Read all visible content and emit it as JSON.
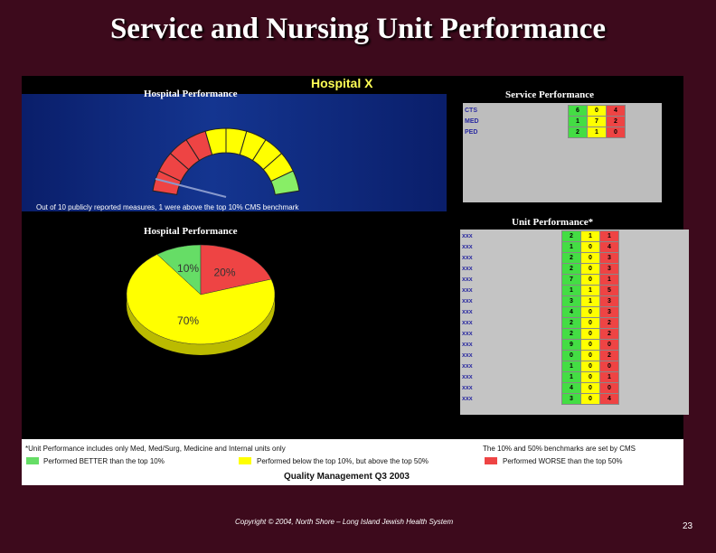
{
  "slide": {
    "title": "Service and Nursing Unit Performance",
    "copyright": "Copyright © 2004, North Shore – Long Island Jewish Health System",
    "page": "23"
  },
  "panel": {
    "hospital": "Hospital X",
    "hp_title": "Hospital Performance",
    "gauge_note": "Out of 10 publicly reported measures, 1 were above the top 10% CMS benchmark",
    "sp_title": "Service Performance",
    "up_title": "Unit Performance*",
    "pie_title": "Hospital Performance"
  },
  "chart_data": [
    {
      "type": "pie",
      "title": "Hospital Performance",
      "categories": [
        "10%",
        "20%",
        "70%"
      ],
      "values": [
        10,
        20,
        70
      ],
      "colors": [
        "#66dd66",
        "#ee4444",
        "#ffff00"
      ]
    },
    {
      "type": "table",
      "title": "Service Performance",
      "columns_colors": [
        "#44dd44",
        "#ffff00",
        "#ee4444"
      ],
      "rows": [
        {
          "label": "CTS",
          "values": [
            6,
            0,
            4
          ]
        },
        {
          "label": "MED",
          "values": [
            1,
            7,
            2
          ]
        },
        {
          "label": "PED",
          "values": [
            2,
            1,
            0
          ]
        }
      ]
    },
    {
      "type": "table",
      "title": "Unit Performance*",
      "columns_colors": [
        "#44dd44",
        "#ffff00",
        "#ee4444"
      ],
      "rows": [
        {
          "label": "xxx",
          "values": [
            2,
            1,
            1
          ]
        },
        {
          "label": "xxx",
          "values": [
            1,
            0,
            4
          ]
        },
        {
          "label": "xxx",
          "values": [
            2,
            0,
            3
          ]
        },
        {
          "label": "xxx",
          "values": [
            2,
            0,
            3
          ]
        },
        {
          "label": "xxx",
          "values": [
            7,
            0,
            1
          ]
        },
        {
          "label": "xxx",
          "values": [
            1,
            1,
            5
          ]
        },
        {
          "label": "xxx",
          "values": [
            3,
            1,
            3
          ]
        },
        {
          "label": "xxx",
          "values": [
            4,
            0,
            3
          ]
        },
        {
          "label": "xxx",
          "values": [
            2,
            0,
            2
          ]
        },
        {
          "label": "xxx",
          "values": [
            2,
            0,
            2
          ]
        },
        {
          "label": "xxx",
          "values": [
            9,
            0,
            0
          ]
        },
        {
          "label": "xxx",
          "values": [
            0,
            0,
            2
          ]
        },
        {
          "label": "xxx",
          "values": [
            1,
            0,
            0
          ]
        },
        {
          "label": "xxx",
          "values": [
            1,
            0,
            1
          ]
        },
        {
          "label": "xxx",
          "values": [
            4,
            0,
            0
          ]
        },
        {
          "label": "xxx",
          "values": [
            3,
            0,
            4
          ]
        }
      ]
    }
  ],
  "legend": {
    "note": "*Unit Performance includes only Med, Med/Surg, Medicine and Internal units only",
    "benchmark_note": "The 10% and 50% benchmarks are set by CMS",
    "better": "Performed BETTER than the top 10%",
    "middle": "Performed below the top 10%, but above the top 50%",
    "worse": "Performed WORSE than the top 50%",
    "quality": "Quality Management Q3 2003",
    "colors": {
      "better": "#66dd66",
      "middle": "#ffff00",
      "worse": "#ee4444"
    }
  }
}
